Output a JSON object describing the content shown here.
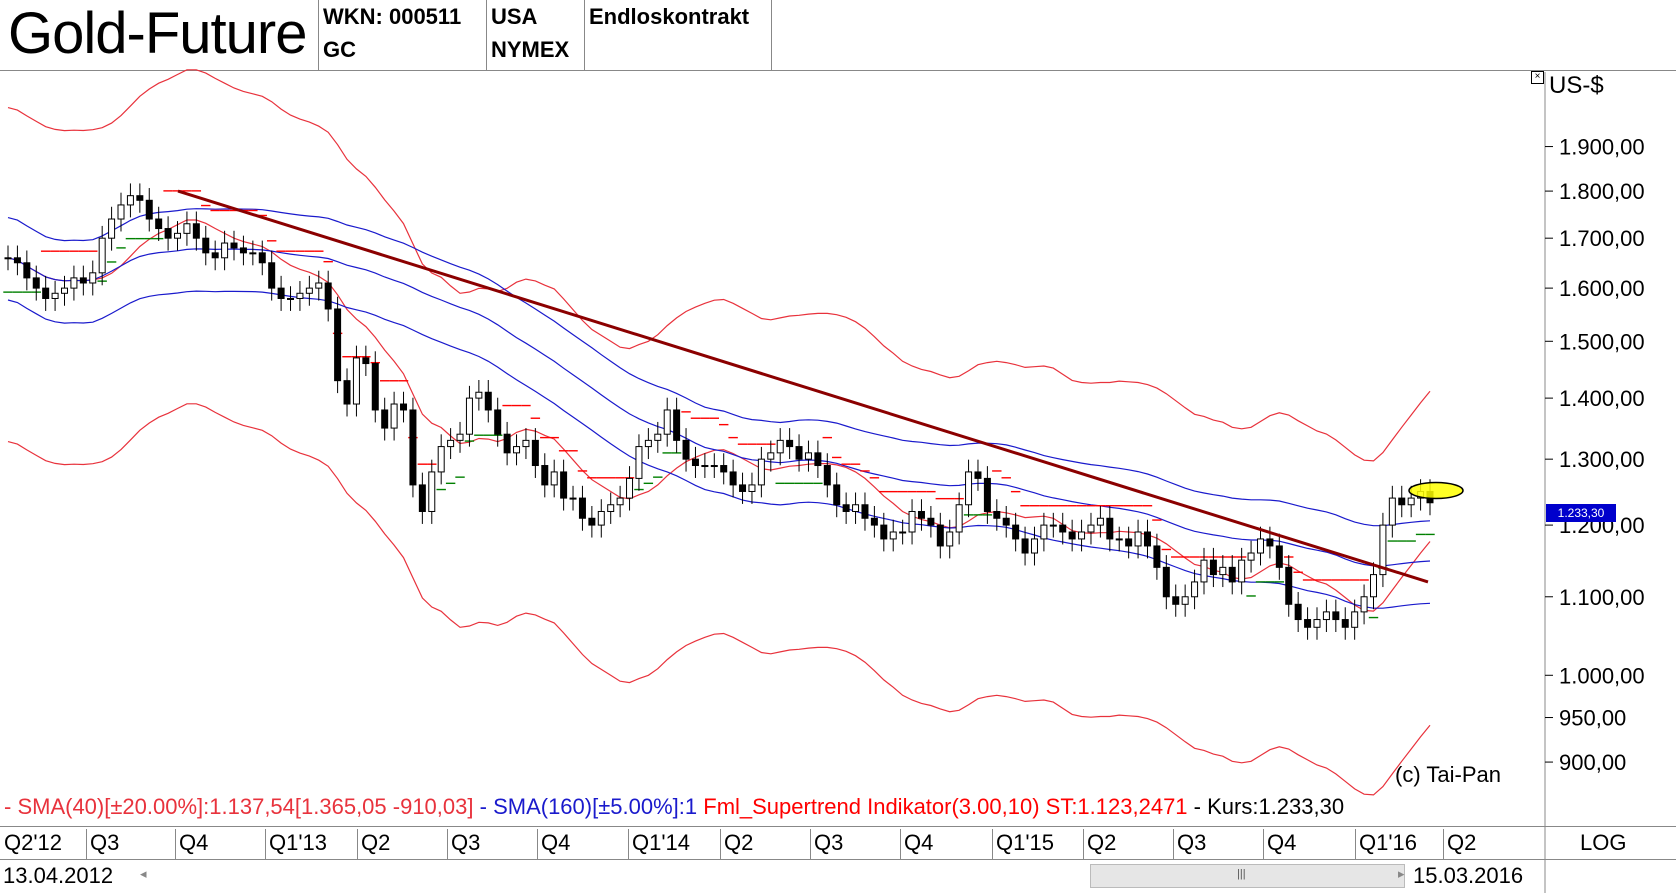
{
  "header": {
    "title": "Gold-Future",
    "wkn": "WKN: 000511",
    "symbol": "GC",
    "country": "USA",
    "exchange": "NYMEX",
    "contract": "Endloskontrakt"
  },
  "currency": "US-$",
  "price_tag": "1.233,30",
  "copyright": "(c) Tai-Pan",
  "legend": {
    "sma40": "- SMA(40)[±20.00%]:1.137,54[1.365,05 -910,03]",
    "sma160": "- SMA(160)[±5.00%]:1",
    "supertrend": "Fml_Supertrend Indikator(3.00,10) ST:1.123,2471",
    "kurs": "- Kurs:1.233,30"
  },
  "x_axis_labels": [
    "Q2'12",
    "Q3",
    "Q4",
    "Q1'13",
    "Q2",
    "Q3",
    "Q4",
    "Q1'14",
    "Q2",
    "Q3",
    "Q4",
    "Q1'15",
    "Q2",
    "Q3",
    "Q4",
    "Q1'16",
    "Q2"
  ],
  "scale_mode": "LOG",
  "date_start": "13.04.2012",
  "date_end": "15.03.2016",
  "colors": {
    "sma40": "#e8323c",
    "sma160": "#1a1acc",
    "supertrend_red": "#ff0000",
    "supertrend_green": "#008000",
    "trendline": "#8b0000",
    "highlight": "#ffff00"
  },
  "chart_data": {
    "type": "candlestick",
    "title": "Gold-Future",
    "ylabel": "US-$",
    "y_scale": "log",
    "y_ticks": [
      "1.900,00",
      "1.800,00",
      "1.700,00",
      "1.600,00",
      "1.500,00",
      "1.400,00",
      "1.300,00",
      "1.200,00",
      "1.100,00",
      "1.000,00",
      "950,00",
      "900,00"
    ],
    "y_tick_values": [
      1900,
      1800,
      1700,
      1600,
      1500,
      1400,
      1300,
      1200,
      1100,
      1000,
      950,
      900
    ],
    "ylim": [
      870,
      2080
    ],
    "weekly_close_approx": [
      1660,
      1650,
      1620,
      1600,
      1580,
      1590,
      1600,
      1620,
      1610,
      1630,
      1700,
      1740,
      1770,
      1790,
      1780,
      1740,
      1720,
      1700,
      1710,
      1730,
      1700,
      1670,
      1660,
      1690,
      1680,
      1670,
      1670,
      1650,
      1600,
      1580,
      1580,
      1590,
      1600,
      1610,
      1560,
      1430,
      1390,
      1470,
      1460,
      1380,
      1350,
      1390,
      1380,
      1260,
      1220,
      1280,
      1320,
      1330,
      1340,
      1400,
      1410,
      1380,
      1340,
      1310,
      1320,
      1330,
      1290,
      1260,
      1280,
      1240,
      1240,
      1210,
      1200,
      1220,
      1230,
      1240,
      1270,
      1320,
      1330,
      1340,
      1380,
      1330,
      1300,
      1290,
      1290,
      1290,
      1280,
      1260,
      1250,
      1260,
      1300,
      1310,
      1330,
      1320,
      1300,
      1310,
      1290,
      1260,
      1230,
      1220,
      1230,
      1210,
      1200,
      1180,
      1190,
      1190,
      1220,
      1210,
      1200,
      1170,
      1190,
      1230,
      1280,
      1270,
      1220,
      1210,
      1200,
      1180,
      1160,
      1180,
      1200,
      1200,
      1190,
      1180,
      1190,
      1200,
      1210,
      1180,
      1180,
      1170,
      1190,
      1170,
      1140,
      1100,
      1090,
      1100,
      1120,
      1150,
      1130,
      1140,
      1120,
      1150,
      1160,
      1180,
      1170,
      1140,
      1090,
      1070,
      1060,
      1070,
      1080,
      1070,
      1060,
      1080,
      1100,
      1130,
      1200,
      1240,
      1230,
      1240,
      1250,
      1233
    ],
    "series": [
      {
        "name": "SMA(40)",
        "upper": "±20.00%",
        "value": "1.137,54"
      },
      {
        "name": "SMA(160)",
        "upper": "±5.00%"
      },
      {
        "name": "Fml_Supertrend Indikator(3.00,10)",
        "value": "1.123,2471"
      }
    ],
    "trendline": {
      "from": {
        "period": "Q4'12",
        "value": 1800
      },
      "to": {
        "period": "Q1'16",
        "value": 1120
      }
    },
    "last_close": 1233.3
  }
}
